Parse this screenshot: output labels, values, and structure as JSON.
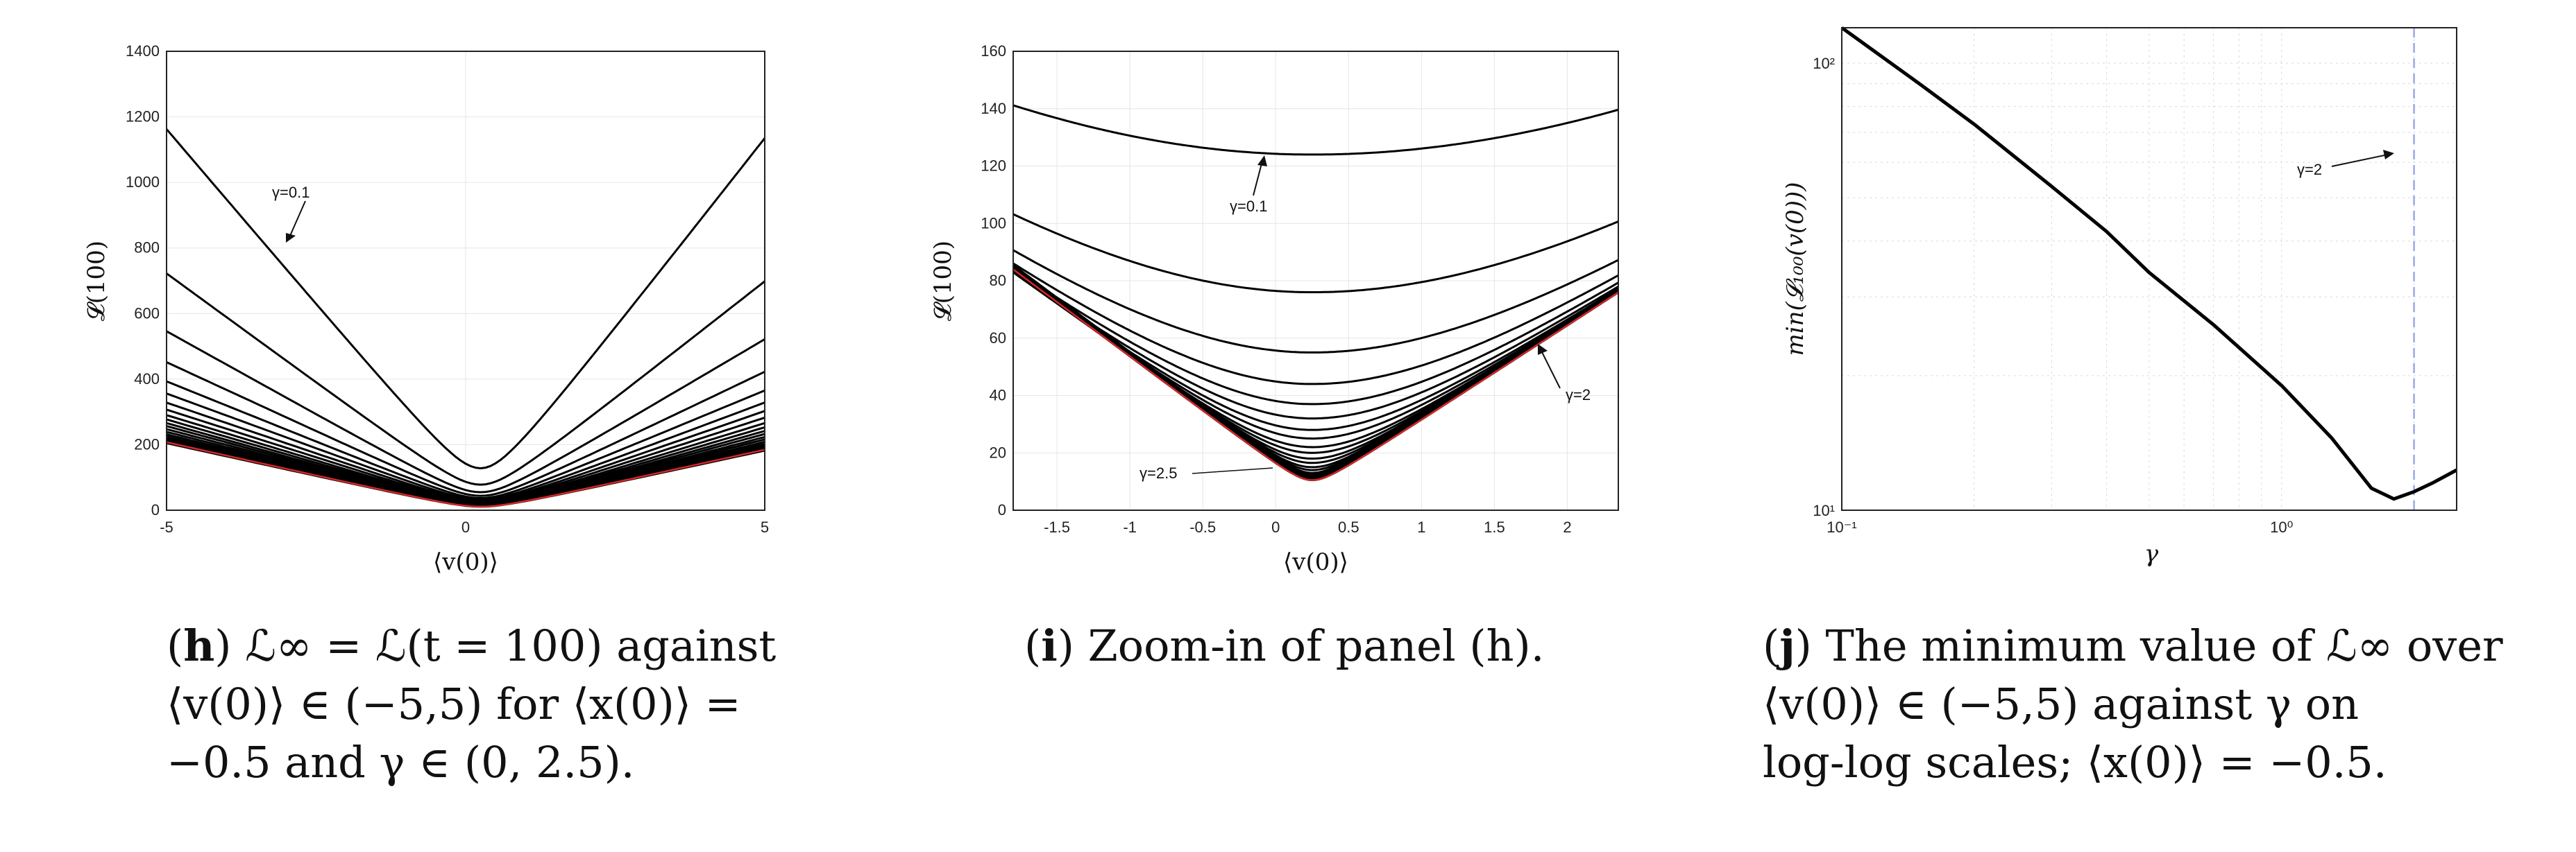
{
  "chart_data": [
    {
      "type": "line",
      "panel": "h",
      "ylabel": "𝓛(100)",
      "xlabel": "⟨v(0)⟩",
      "xlim": [
        -5,
        5
      ],
      "ylim": [
        0,
        1400
      ],
      "xticks": [
        -5,
        0,
        5
      ],
      "yticks": [
        0,
        200,
        400,
        600,
        800,
        1000,
        1200,
        1400
      ],
      "grid": true,
      "series_description": "family of V-shaped curves, one per gamma in (0,2.5); minimum near v=0.25",
      "series": [
        {
          "left": 1255,
          "right": 1235,
          "min": 128
        },
        {
          "left": 780,
          "right": 760,
          "min": 78
        },
        {
          "left": 590,
          "right": 568,
          "min": 55
        },
        {
          "left": 488,
          "right": 460,
          "min": 44
        },
        {
          "left": 425,
          "right": 398,
          "min": 37
        },
        {
          "left": 385,
          "right": 358,
          "min": 32
        },
        {
          "left": 355,
          "right": 330,
          "min": 28
        },
        {
          "left": 332,
          "right": 308,
          "min": 25
        },
        {
          "left": 314,
          "right": 290,
          "min": 22
        },
        {
          "left": 300,
          "right": 276,
          "min": 20
        },
        {
          "left": 288,
          "right": 264,
          "min": 18
        },
        {
          "left": 278,
          "right": 254,
          "min": 17
        },
        {
          "left": 268,
          "right": 244,
          "min": 16
        },
        {
          "left": 259,
          "right": 236,
          "min": 15
        },
        {
          "left": 251,
          "right": 228,
          "min": 14
        },
        {
          "left": 244,
          "right": 221,
          "min": 13
        },
        {
          "left": 238,
          "right": 215,
          "min": 12.5
        },
        {
          "left": 232,
          "right": 209,
          "min": 12
        },
        {
          "left": 227,
          "right": 204,
          "min": 11.5
        },
        {
          "left": 222,
          "right": 199,
          "min": 11
        },
        {
          "left": 225,
          "right": 202,
          "min": 11,
          "color": "#d62728"
        }
      ],
      "annotations": [
        {
          "text": "γ=0.1"
        }
      ]
    },
    {
      "type": "line",
      "panel": "i",
      "ylabel": "𝓛(100)",
      "xlabel": "⟨v(0)⟩",
      "xlim": [
        -1.8,
        2.35
      ],
      "ylim": [
        0,
        160
      ],
      "xticks": [
        -1.5,
        -1,
        -0.5,
        0,
        0.5,
        1,
        1.5,
        2
      ],
      "yticks": [
        0,
        20,
        40,
        60,
        80,
        100,
        120,
        140,
        160
      ],
      "grid": true,
      "series_minima": [
        124,
        76,
        55,
        44,
        37,
        32,
        28,
        25,
        22,
        20,
        18,
        16.5,
        15,
        14,
        13,
        12.5,
        12,
        11.5,
        11,
        10.5
      ],
      "red_min": 10.5,
      "annotations": [
        {
          "text": "γ=0.1"
        },
        {
          "text": "γ=2"
        },
        {
          "text": "γ=2.5"
        }
      ]
    },
    {
      "type": "line",
      "panel": "j",
      "ylabel": "min(𝓛₁₀₀(v(0)))",
      "xlabel": "γ",
      "xscale": "log",
      "yscale": "log",
      "xlim": [
        0.1,
        2.5
      ],
      "ylim": [
        10,
        120
      ],
      "xticks": [
        "10⁻¹",
        "10⁰"
      ],
      "yticks": [
        "10¹",
        "10²"
      ],
      "grid": true,
      "x": [
        0.1,
        0.15,
        0.2,
        0.3,
        0.4,
        0.5,
        0.7,
        1.0,
        1.3,
        1.6,
        1.8,
        2.0,
        2.2,
        2.5
      ],
      "y": [
        120,
        90,
        73,
        53,
        42,
        34,
        26,
        19,
        14.5,
        11.2,
        10.6,
        11.0,
        11.5,
        12.3
      ],
      "vline": {
        "x": 2.0,
        "color": "#9aa7e6"
      },
      "annotations": [
        {
          "text": "γ=2"
        }
      ]
    }
  ],
  "captions": {
    "h": {
      "label": "h",
      "lines": [
        "ℒ∞ = ℒ(t = 100) against",
        "⟨v(0)⟩ ∈ (−5,5) for ⟨x(0)⟩ =",
        "−0.5 and γ ∈ (0, 2.5)."
      ]
    },
    "i": {
      "label": "i",
      "lines": [
        "Zoom-in of panel (h)."
      ]
    },
    "j": {
      "label": "j",
      "lines": [
        "The minimum value of ℒ∞ over",
        "⟨v(0)⟩ ∈ (−5,5) against γ on",
        "log-log scales; ⟨x(0)⟩ = −0.5."
      ]
    }
  }
}
